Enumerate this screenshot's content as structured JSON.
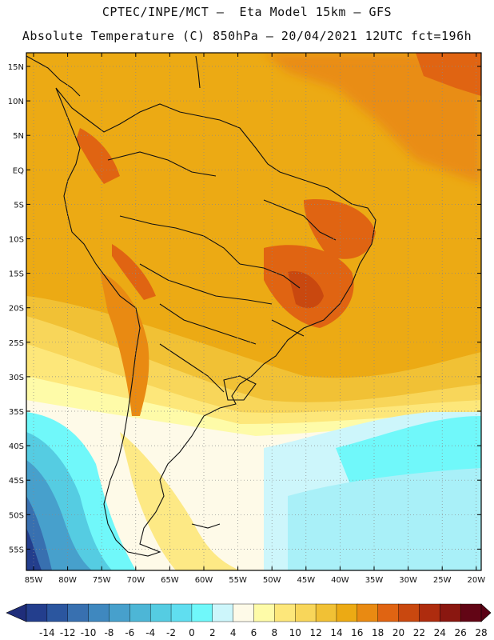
{
  "header": {
    "line1": "CPTEC/INPE/MCT —  Eta Model 15km — GFS",
    "line2": "Absolute Temperature (C) 850hPa — 20/04/2021 12UTC fct=196h"
  },
  "map": {
    "lat_labels": [
      "15N",
      "10N",
      "5N",
      "EQ",
      "5S",
      "10S",
      "15S",
      "20S",
      "25S",
      "30S",
      "35S",
      "40S",
      "45S",
      "50S",
      "55S"
    ],
    "lon_labels": [
      "85W",
      "80W",
      "75W",
      "70W",
      "65W",
      "60W",
      "55W",
      "50W",
      "45W",
      "40W",
      "35W",
      "30W",
      "25W",
      "20W"
    ]
  },
  "colorbar": {
    "labels": [
      "-14",
      "-12",
      "-10",
      "-8",
      "-6",
      "-4",
      "-2",
      "0",
      "2",
      "4",
      "6",
      "8",
      "10",
      "12",
      "14",
      "16",
      "18",
      "20",
      "22",
      "24",
      "26",
      "28"
    ],
    "colors": [
      "#233e8d",
      "#2b569f",
      "#3870b0",
      "#3f88bf",
      "#47a0cc",
      "#4db6d6",
      "#55cce2",
      "#60def0",
      "#70f8fa",
      "#cdf6fb",
      "#fefae8",
      "#fefba8",
      "#fde77a",
      "#f8d65a",
      "#f1c135",
      "#ecaa14",
      "#e98a12",
      "#e06412",
      "#c9480f",
      "#ae2c0e",
      "#8a1710",
      "#620515"
    ],
    "low_color": "#1f2d7a",
    "high_color": "#5a0014"
  },
  "palette": {
    "ocean_north": "#ecaa14",
    "land_border": "#111111",
    "grid": "#888888"
  }
}
